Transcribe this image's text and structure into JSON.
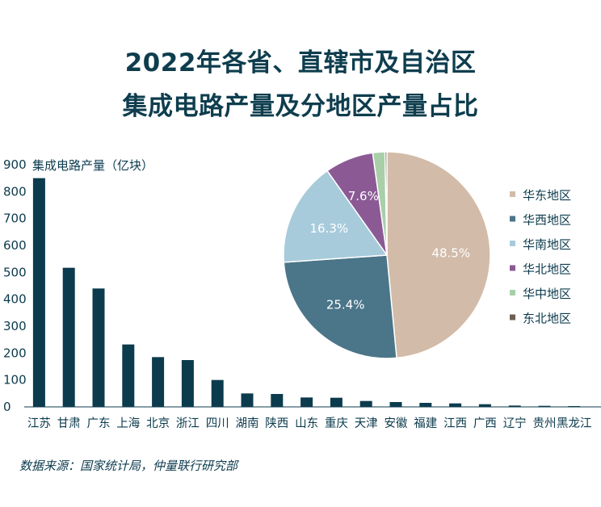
{
  "title_line1": "2022年各省、直辖市及自治区",
  "title_line2": "集成电路产量及分地区产量占比",
  "source": "数据来源：国家统计局，仲量联行研究部",
  "chart_data": [
    {
      "type": "bar",
      "ylabel": "集成电路产量（亿块）",
      "ylim": [
        0,
        900
      ],
      "yticks": [
        0,
        100,
        200,
        300,
        400,
        500,
        600,
        700,
        800,
        900
      ],
      "bar_color": "#0c3b4d",
      "categories": [
        "江苏",
        "甘肃",
        "广东",
        "上海",
        "北京",
        "浙江",
        "四川",
        "湖南",
        "陕西",
        "山东",
        "重庆",
        "天津",
        "安徽",
        "福建",
        "江西",
        "广西",
        "辽宁",
        "贵州",
        "黑龙江"
      ],
      "values": [
        850,
        517,
        440,
        232,
        185,
        174,
        100,
        50,
        48,
        35,
        34,
        22,
        18,
        15,
        13,
        10,
        5,
        4,
        3
      ]
    },
    {
      "type": "pie",
      "series": [
        {
          "name": "华东地区",
          "value": 48.5,
          "label": "48.5%",
          "color": "#d2bba8"
        },
        {
          "name": "华西地区",
          "value": 25.4,
          "label": "25.4%",
          "color": "#4b7589"
        },
        {
          "name": "华南地区",
          "value": 16.3,
          "label": "16.3%",
          "color": "#a7cbdb"
        },
        {
          "name": "华北地区",
          "value": 7.6,
          "label": "7.6%",
          "color": "#8b5a95"
        },
        {
          "name": "华中地区",
          "value": 1.9,
          "label": "",
          "color": "#a9cfa8"
        },
        {
          "name": "东北地区",
          "value": 0.3,
          "label": "",
          "color": "#6f5e52"
        }
      ],
      "legend": "right"
    }
  ]
}
